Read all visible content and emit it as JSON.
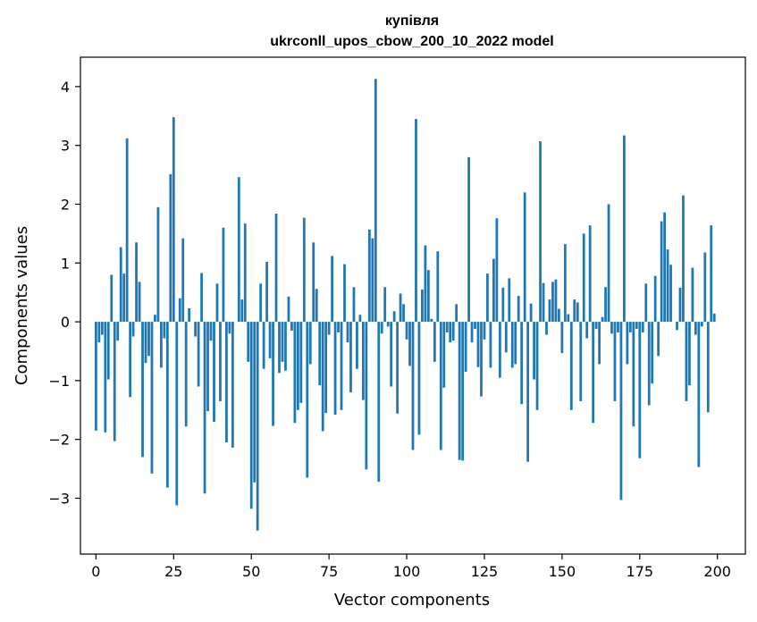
{
  "chart_data": {
    "type": "bar",
    "title": "купівля",
    "subtitle": "ukrconll_upos_cbow_200_10_2022 model",
    "xlabel": "Vector components",
    "ylabel": "Components values",
    "xlim": [
      -5,
      209
    ],
    "ylim": [
      -3.95,
      4.5
    ],
    "xticks": [
      0,
      25,
      50,
      75,
      100,
      125,
      150,
      175,
      200
    ],
    "yticks": [
      -3,
      -2,
      -1,
      0,
      1,
      2,
      3,
      4
    ],
    "ytick_labels": [
      "−3",
      "−2",
      "−1",
      "0",
      "1",
      "2",
      "3",
      "4"
    ],
    "grid": false,
    "bar_color": "#1f77b4",
    "x": [
      0,
      1,
      2,
      3,
      4,
      5,
      6,
      7,
      8,
      9,
      10,
      11,
      12,
      13,
      14,
      15,
      16,
      17,
      18,
      19,
      20,
      21,
      22,
      23,
      24,
      25,
      26,
      27,
      28,
      29,
      30,
      31,
      32,
      33,
      34,
      35,
      36,
      37,
      38,
      39,
      40,
      41,
      42,
      43,
      44,
      45,
      46,
      47,
      48,
      49,
      50,
      51,
      52,
      53,
      54,
      55,
      56,
      57,
      58,
      59,
      60,
      61,
      62,
      63,
      64,
      65,
      66,
      67,
      68,
      69,
      70,
      71,
      72,
      73,
      74,
      75,
      76,
      77,
      78,
      79,
      80,
      81,
      82,
      83,
      84,
      85,
      86,
      87,
      88,
      89,
      90,
      91,
      92,
      93,
      94,
      95,
      96,
      97,
      98,
      99,
      100,
      101,
      102,
      103,
      104,
      105,
      106,
      107,
      108,
      109,
      110,
      111,
      112,
      113,
      114,
      115,
      116,
      117,
      118,
      119,
      120,
      121,
      122,
      123,
      124,
      125,
      126,
      127,
      128,
      129,
      130,
      131,
      132,
      133,
      134,
      135,
      136,
      137,
      138,
      139,
      140,
      141,
      142,
      143,
      144,
      145,
      146,
      147,
      148,
      149,
      150,
      151,
      152,
      153,
      154,
      155,
      156,
      157,
      158,
      159,
      160,
      161,
      162,
      163,
      164,
      165,
      166,
      167,
      168,
      169,
      170,
      171,
      172,
      173,
      174,
      175,
      176,
      177,
      178,
      179,
      180,
      181,
      182,
      183,
      184,
      185,
      186,
      187,
      188,
      189,
      190,
      191,
      192,
      193,
      194,
      195,
      196,
      197,
      198,
      199
    ],
    "values": [
      -1.85,
      -0.35,
      -0.22,
      -1.88,
      -0.98,
      0.8,
      -2.03,
      -0.32,
      1.27,
      0.82,
      3.12,
      -1.28,
      -0.25,
      1.35,
      0.68,
      -2.3,
      -0.7,
      -0.58,
      -2.58,
      0.12,
      1.95,
      -0.78,
      -0.28,
      -2.82,
      2.51,
      3.48,
      -3.12,
      0.4,
      1.42,
      -1.78,
      0.23,
      0.0,
      -0.25,
      -1.1,
      0.83,
      -2.92,
      -1.52,
      -0.32,
      -1.7,
      0.65,
      -1.35,
      1.6,
      -2.05,
      -0.2,
      -2.14,
      0.0,
      2.46,
      0.38,
      1.67,
      -0.68,
      -3.18,
      -2.73,
      -3.55,
      0.65,
      -0.8,
      1.02,
      -0.62,
      -1.77,
      1.84,
      -0.87,
      -0.68,
      -0.83,
      0.43,
      -0.15,
      -1.72,
      -1.5,
      -1.38,
      1.77,
      -2.65,
      -0.72,
      1.35,
      0.56,
      -1.08,
      -1.86,
      -1.55,
      -0.22,
      1.12,
      -1.58,
      -0.18,
      -1.5,
      0.98,
      -0.35,
      -1.2,
      0.59,
      -0.8,
      0.12,
      -1.33,
      -2.51,
      1.57,
      1.42,
      4.13,
      -2.72,
      -0.2,
      0.59,
      -0.08,
      -1.1,
      0.18,
      -1.56,
      0.48,
      0.3,
      -0.3,
      -0.75,
      -2.18,
      3.45,
      -1.92,
      0.55,
      1.3,
      0.88,
      0.05,
      -0.68,
      1.2,
      -2.18,
      -1.12,
      -0.18,
      -0.35,
      -0.32,
      0.3,
      -2.35,
      -2.36,
      -0.85,
      2.8,
      -0.35,
      -0.12,
      -0.77,
      -1.27,
      -0.3,
      0.82,
      -0.78,
      1.07,
      1.76,
      -0.95,
      0.58,
      -0.52,
      0.74,
      -0.78,
      -0.72,
      0.44,
      -1.4,
      2.2,
      -2.38,
      0.31,
      -0.98,
      -1.5,
      3.07,
      0.66,
      -0.22,
      0.38,
      0.68,
      0.72,
      0.22,
      -0.53,
      1.32,
      0.13,
      -1.5,
      0.38,
      0.33,
      -1.35,
      1.5,
      -0.28,
      1.64,
      -1.72,
      -0.12,
      -0.72,
      0.08,
      0.59,
      2.0,
      -0.2,
      -1.35,
      -0.18,
      -3.03,
      3.17,
      -0.72,
      -0.18,
      -1.78,
      -0.12,
      -2.32,
      -0.18,
      0.65,
      -1.42,
      -1.05,
      0.78,
      -0.58,
      1.71,
      1.86,
      1.23,
      0.97,
      0.0,
      -0.14,
      0.58,
      2.15,
      -1.35,
      -1.08,
      0.92,
      -0.22,
      -2.47,
      -0.08,
      1.18,
      -1.54,
      1.64,
      0.14
    ]
  }
}
